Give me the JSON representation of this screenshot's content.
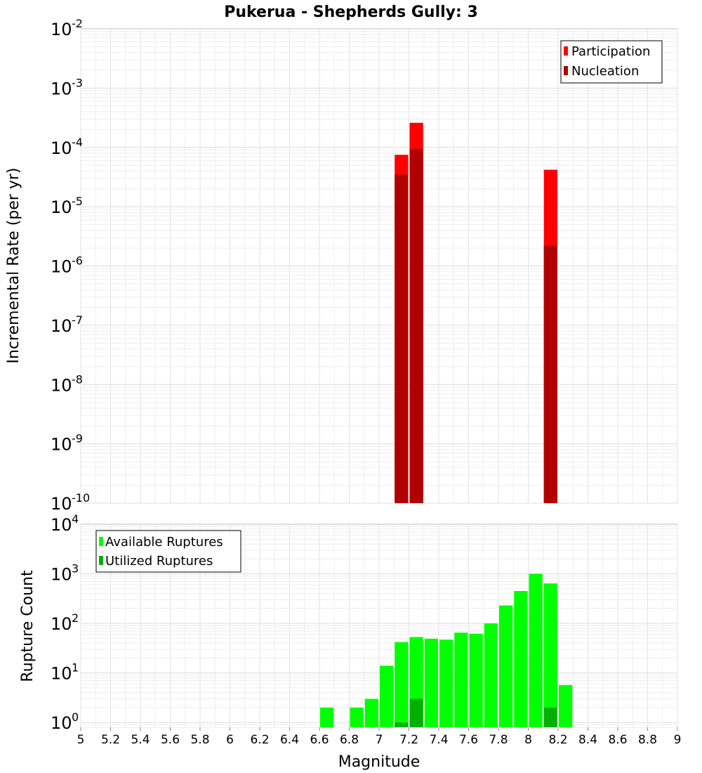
{
  "chart_data": [
    {
      "type": "bar",
      "title": "Pukerua - Shepherds Gully: 3",
      "xlabel": "Magnitude",
      "ylabel": "Incremental Rate (per yr)",
      "yscale": "log",
      "xlim": [
        5,
        9
      ],
      "ylim": [
        1e-10,
        0.01
      ],
      "grid": true,
      "legend_position": "top-right",
      "series": [
        {
          "name": "Participation",
          "color": "#ff0000",
          "x": [
            7.15,
            7.25,
            8.15
          ],
          "values": [
            7.5e-05,
            0.00026,
            4.2e-05
          ]
        },
        {
          "name": "Nucleation",
          "color": "#b00000",
          "x": [
            7.15,
            7.25,
            8.15
          ],
          "values": [
            3.5e-05,
            9.5e-05,
            2.2e-06
          ]
        }
      ],
      "y_ticks": [
        {
          "base": "10",
          "exp": "-2"
        },
        {
          "base": "10",
          "exp": "-3"
        },
        {
          "base": "10",
          "exp": "-4"
        },
        {
          "base": "10",
          "exp": "-5"
        },
        {
          "base": "10",
          "exp": "-6"
        },
        {
          "base": "10",
          "exp": "-7"
        },
        {
          "base": "10",
          "exp": "-8"
        },
        {
          "base": "10",
          "exp": "-9"
        },
        {
          "base": "10",
          "exp": "-10"
        }
      ]
    },
    {
      "type": "bar",
      "xlabel": "Magnitude",
      "ylabel": "Rupture Count",
      "yscale": "log",
      "xlim": [
        5,
        9
      ],
      "ylim": [
        0.8,
        10000
      ],
      "grid": true,
      "legend_position": "top-left",
      "series": [
        {
          "name": "Available Ruptures",
          "color": "#00ff00",
          "x": [
            6.65,
            6.85,
            6.95,
            7.05,
            7.15,
            7.25,
            7.35,
            7.45,
            7.55,
            7.65,
            7.75,
            7.85,
            7.95,
            8.05,
            8.15,
            8.25
          ],
          "values": [
            2,
            2,
            3,
            14,
            42,
            53,
            49,
            47,
            65,
            62,
            100,
            230,
            450,
            1000,
            640,
            5.7
          ]
        },
        {
          "name": "Utilized Ruptures",
          "color": "#00b000",
          "x": [
            7.15,
            7.25,
            8.15
          ],
          "values": [
            1,
            3,
            2
          ]
        }
      ],
      "y_ticks": [
        {
          "base": "10",
          "exp": "4"
        },
        {
          "base": "10",
          "exp": "3"
        },
        {
          "base": "10",
          "exp": "2"
        },
        {
          "base": "10",
          "exp": "1"
        },
        {
          "base": "10",
          "exp": "0"
        }
      ],
      "x_ticks": [
        "5",
        "5.2",
        "5.4",
        "5.6",
        "5.8",
        "6",
        "6.2",
        "6.4",
        "6.6",
        "6.8",
        "7",
        "7.2",
        "7.4",
        "7.6",
        "7.8",
        "8",
        "8.2",
        "8.4",
        "8.6",
        "8.8",
        "9"
      ]
    }
  ]
}
